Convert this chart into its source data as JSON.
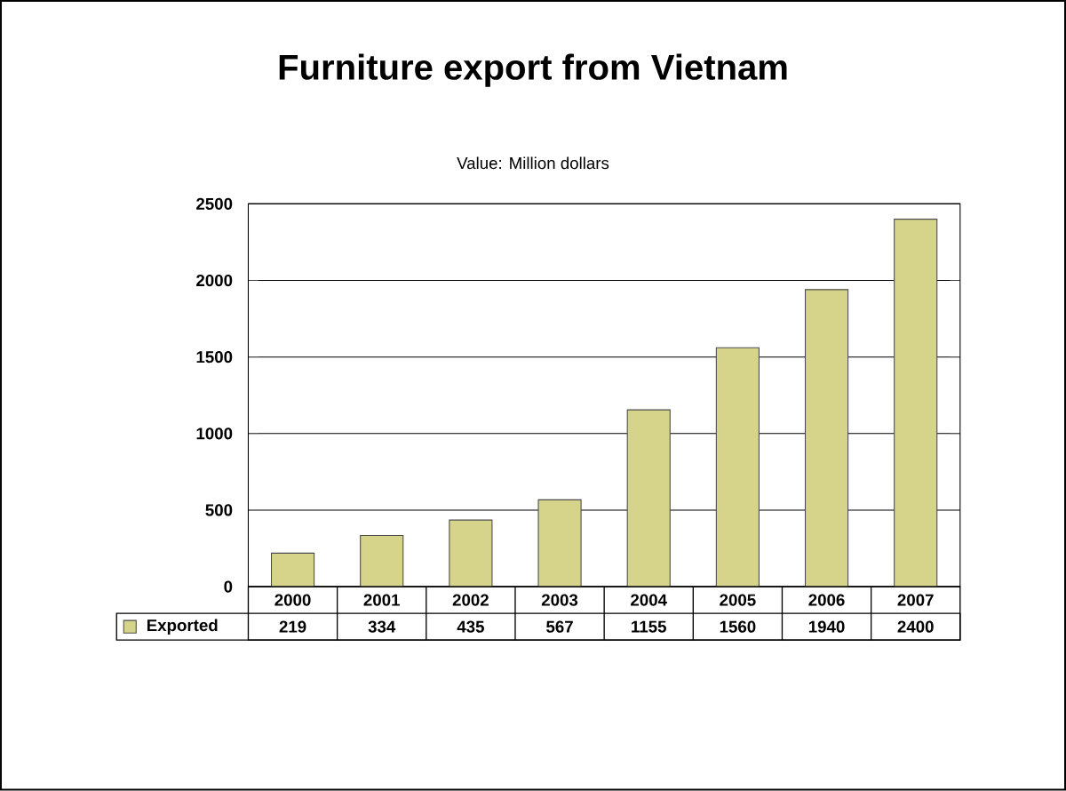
{
  "chart_data": {
    "type": "bar",
    "title": "Furniture export from Vietnam",
    "subtitle": "Value: Million dollars",
    "categories": [
      "2000",
      "2001",
      "2002",
      "2003",
      "2004",
      "2005",
      "2006",
      "2007"
    ],
    "series": [
      {
        "name": "Exported",
        "color": "#d6d48a",
        "values": [
          219,
          334,
          435,
          567,
          1155,
          1560,
          1940,
          2400
        ]
      }
    ],
    "ylim": [
      0,
      2500
    ],
    "yticks": [
      0,
      500,
      1000,
      1500,
      2000,
      2500
    ],
    "grid": "y",
    "legend": "bottom",
    "data_labels": true
  }
}
